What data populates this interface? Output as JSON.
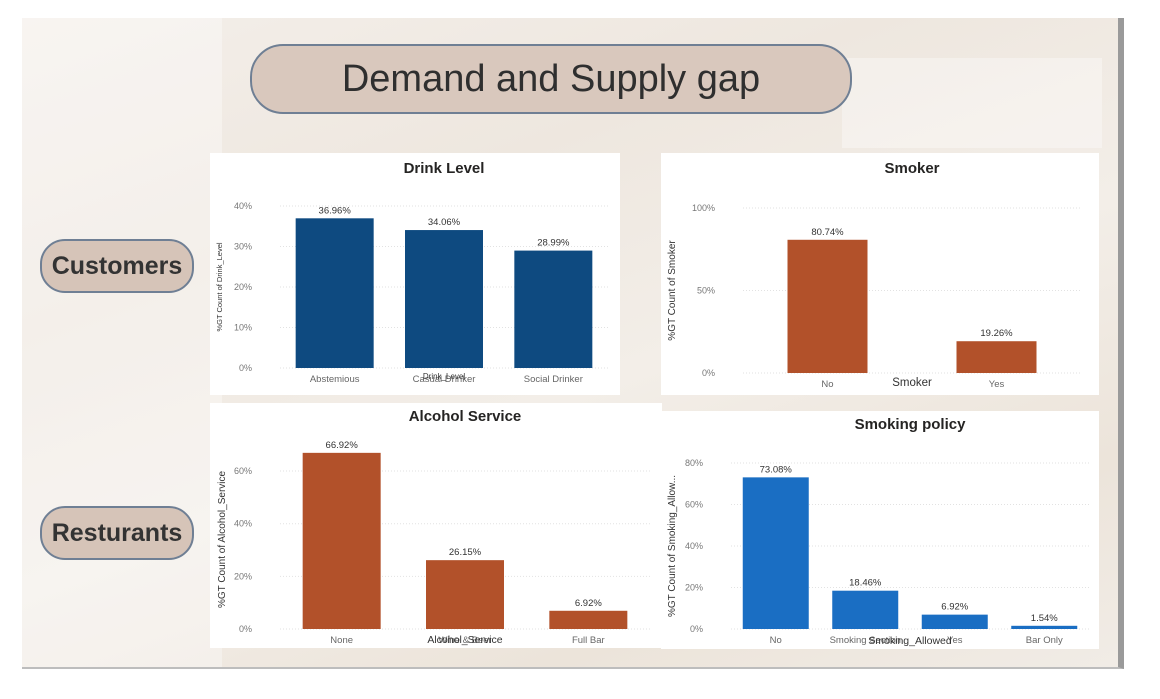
{
  "title": "Demand and Supply gap",
  "row_labels": {
    "customers": "Customers",
    "restaurants": "Resturants"
  },
  "chart_data": [
    {
      "id": "drink",
      "type": "bar",
      "title": "Drink Level",
      "xlabel": "Drink_Level",
      "ylabel": "%GT Count of Drink_Level",
      "categories": [
        "Abstemious",
        "Casual Drinker",
        "Social Drinker"
      ],
      "values": [
        36.96,
        34.06,
        28.99
      ],
      "labels": [
        "36.96%",
        "34.06%",
        "28.99%"
      ],
      "ylim": [
        0,
        40
      ],
      "yticks": [
        0,
        10,
        20,
        30,
        40
      ],
      "ytick_labels": [
        "0%",
        "10%",
        "20%",
        "30%",
        "40%"
      ],
      "color": "#0e4a80"
    },
    {
      "id": "smoker",
      "type": "bar",
      "title": "Smoker",
      "xlabel": "Smoker",
      "ylabel": "%GT Count of Smoker",
      "categories": [
        "No",
        "Yes"
      ],
      "values": [
        80.74,
        19.26
      ],
      "labels": [
        "80.74%",
        "19.26%"
      ],
      "ylim": [
        0,
        100
      ],
      "yticks": [
        0,
        50,
        100
      ],
      "ytick_labels": [
        "0%",
        "50%",
        "100%"
      ],
      "color": "#b2512a"
    },
    {
      "id": "alcohol",
      "type": "bar",
      "title": "Alcohol Service",
      "xlabel": "Alcohol_Service",
      "ylabel": "%GT Count of Alcohol_Service",
      "categories": [
        "None",
        "Wine & Beer",
        "Full Bar"
      ],
      "values": [
        66.92,
        26.15,
        6.92
      ],
      "labels": [
        "66.92%",
        "26.15%",
        "6.92%"
      ],
      "ylim": [
        0,
        68
      ],
      "yticks": [
        0,
        20,
        40,
        60
      ],
      "ytick_labels": [
        "0%",
        "20%",
        "40%",
        "60%"
      ],
      "color": "#b2512a"
    },
    {
      "id": "policy",
      "type": "bar",
      "title": "Smoking policy",
      "xlabel": "Smoking_Allowed",
      "ylabel": "%GT Count of Smoking_Allow...",
      "categories": [
        "No",
        "Smoking Section",
        "Yes",
        "Bar Only"
      ],
      "values": [
        73.08,
        18.46,
        6.92,
        1.54
      ],
      "labels": [
        "73.08%",
        "18.46%",
        "6.92%",
        "1.54%"
      ],
      "ylim": [
        0,
        80
      ],
      "yticks": [
        0,
        20,
        40,
        60,
        80
      ],
      "ytick_labels": [
        "0%",
        "20%",
        "40%",
        "60%",
        "80%"
      ],
      "color": "#1a6ec3"
    }
  ]
}
